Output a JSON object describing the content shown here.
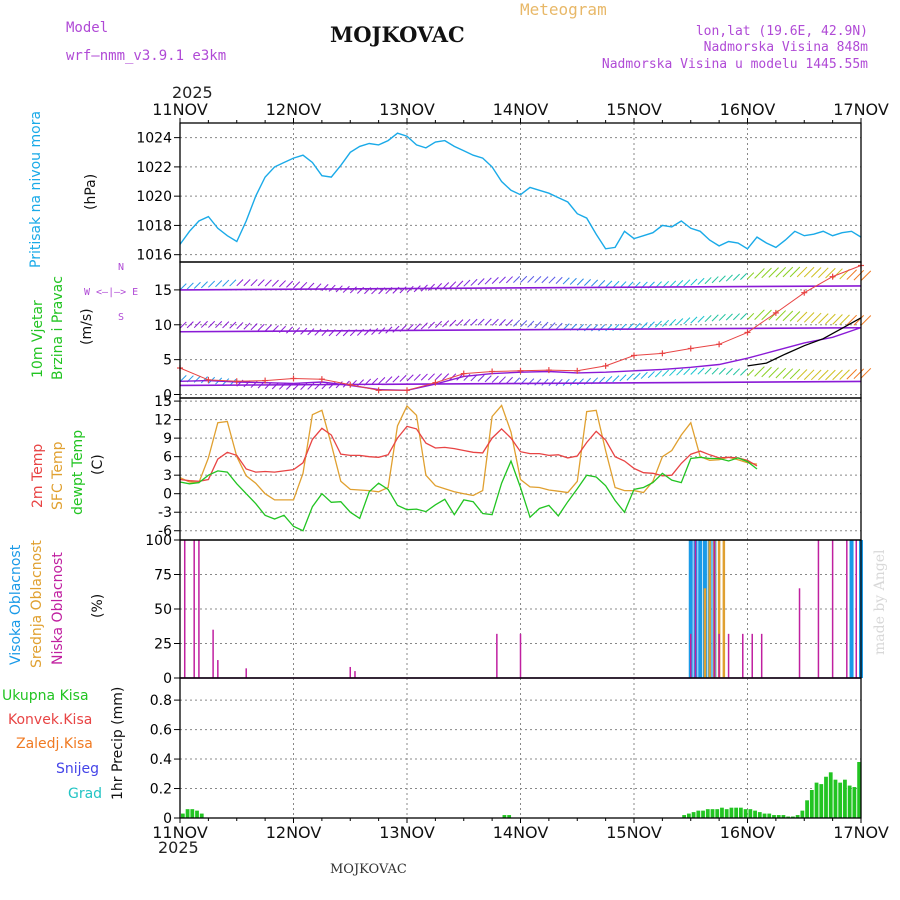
{
  "header": {
    "model_label": "Model",
    "model_name": "wrf—nmm_v3.9.1  e3km",
    "title": "MOJKOVAC",
    "meteogram_label": "Meteogram",
    "lonlat": "lon,lat (19.6E, 42.9N)",
    "altitude": "Nadmorska Visina 848m",
    "model_altitude": "Nadmorska Visina u modelu 1445.55m",
    "year_top": "2025",
    "year_bottom": "2025",
    "footer_station": "MOJKOVAC",
    "watermark": "made by Angel"
  },
  "colors": {
    "pressure": "#1aaae8",
    "wind_mean": "#8a1ad6",
    "gust": "#e84444",
    "temp2m": "#e84444",
    "sfc": "#e0a030",
    "dewpt": "#22c422",
    "high_cloud": "#1a9ae8",
    "mid_cloud": "#e0a030",
    "low_cloud": "#c020a0",
    "precip_total": "#22c422",
    "precip_conv": "#e84444",
    "precip_frozen": "#f07a22",
    "precip_snow": "#4444e8",
    "precip_hail": "#22c4c4"
  },
  "panel_labels": {
    "pressure_name": "Pritisak na nivou mora",
    "pressure_unit": "(hPa)",
    "wind_name1": "10m Vjetar",
    "wind_name2": "Brzina i Pravac",
    "wind_unit": "(m/s)",
    "wind_dir_legend": "W  <—|—>  E",
    "wind_dir_n": "N",
    "wind_dir_s": "S",
    "temp_2m": "2m Temp",
    "temp_sfc": "SFC Temp",
    "temp_dew": "dewpt Temp",
    "temp_unit": "(C)",
    "cloud_high": "Visoka Oblacnost",
    "cloud_mid": "Srednja Oblacnost",
    "cloud_low": "Niska Oblacnost",
    "cloud_unit": "(%)",
    "precip_total": "Ukupna  Kisa",
    "precip_conv": "Konvek.Kisa",
    "precip_frozen": "Zaledj.Kisa",
    "precip_snow": "Snijeg",
    "precip_hail": "Grad",
    "precip_unit": "1hr Precip (mm)"
  },
  "chart_data": {
    "type": "meteogram",
    "time_axis": {
      "hours": 144,
      "day_labels": [
        "11NOV",
        "12NOV",
        "13NOV",
        "14NOV",
        "15NOV",
        "16NOV",
        "17NOV"
      ]
    },
    "pressure": {
      "title": "Pritisak na nivou mora",
      "ylabel": "(hPa)",
      "ylim": [
        1015.5,
        1025
      ],
      "yticks": [
        1016,
        1018,
        1020,
        1022,
        1024
      ],
      "x": [
        0,
        2,
        4,
        6,
        8,
        10,
        12,
        14,
        16,
        18,
        20,
        22,
        24,
        26,
        28,
        30,
        32,
        34,
        36,
        38,
        40,
        42,
        44,
        46,
        48,
        50,
        52,
        54,
        56,
        58,
        60,
        62,
        64,
        66,
        68,
        70,
        72,
        74,
        76,
        78,
        80,
        82,
        84,
        86,
        88,
        90,
        92,
        94,
        96,
        98,
        100,
        102,
        104,
        106,
        108,
        110,
        112,
        114,
        116,
        118,
        120,
        122,
        124,
        126,
        128,
        130,
        132,
        134,
        136,
        138,
        140,
        142,
        144
      ],
      "values": [
        1016.7,
        1017.6,
        1018.3,
        1018.6,
        1017.8,
        1017.3,
        1016.9,
        1018.3,
        1020.0,
        1021.3,
        1022.0,
        1022.3,
        1022.6,
        1022.8,
        1022.3,
        1021.4,
        1021.3,
        1022.1,
        1023.0,
        1023.4,
        1023.6,
        1023.5,
        1023.8,
        1024.3,
        1024.1,
        1023.5,
        1023.3,
        1023.7,
        1023.8,
        1023.4,
        1023.1,
        1022.8,
        1022.6,
        1022.0,
        1021.0,
        1020.4,
        1020.1,
        1020.6,
        1020.4,
        1020.2,
        1019.9,
        1019.6,
        1018.8,
        1018.5,
        1017.4,
        1016.4,
        1016.5,
        1017.6,
        1017.1,
        1017.3,
        1017.5,
        1018.0,
        1017.9,
        1018.3,
        1017.8,
        1017.6,
        1017.0,
        1016.6,
        1016.9,
        1016.8,
        1016.4,
        1017.2,
        1016.8,
        1016.5,
        1017.0,
        1017.6,
        1017.3,
        1017.4,
        1017.6,
        1017.3,
        1017.5,
        1017.6,
        1017.2
      ]
    },
    "wind": {
      "title": "10m Vjetar Brzina i Pravac",
      "ylabel": "(m/s)",
      "ylim": [
        -0.5,
        19
      ],
      "yticks": [
        0,
        5,
        10,
        15
      ],
      "x": [
        0,
        6,
        12,
        18,
        24,
        30,
        36,
        42,
        48,
        54,
        60,
        66,
        72,
        78,
        84,
        90,
        96,
        102,
        108,
        114,
        120,
        126,
        132,
        138,
        144
      ],
      "mean_speed": [
        1.9,
        2.0,
        1.8,
        1.7,
        1.6,
        1.8,
        1.3,
        0.7,
        0.6,
        1.5,
        2.6,
        3.0,
        3.2,
        3.3,
        3.1,
        3.2,
        3.4,
        3.6,
        3.9,
        4.3,
        5.2,
        6.3,
        7.4,
        8.2,
        9.6
      ],
      "gust_speed": [
        3.8,
        2.1,
        1.9,
        2.0,
        2.3,
        2.2,
        1.4,
        0.6,
        0.6,
        1.7,
        3.0,
        3.3,
        3.4,
        3.5,
        3.4,
        4.1,
        5.6,
        5.9,
        6.6,
        7.2,
        8.9,
        11.7,
        14.6,
        16.9,
        18.5
      ],
      "black_line_x": [
        120,
        124,
        128,
        132,
        136,
        140,
        144
      ],
      "black_line": [
        4.1,
        4.5,
        5.8,
        7.0,
        8.0,
        9.5,
        11.0
      ]
    },
    "temperature": {
      "ylabel": "(C)",
      "ylim": [
        -7.5,
        15.5
      ],
      "yticks": [
        -6,
        -3,
        0,
        3,
        6,
        9,
        12,
        15
      ],
      "x": [
        0,
        2,
        4,
        6,
        8,
        10,
        12,
        14,
        16,
        18,
        20,
        22,
        24,
        26,
        28,
        30,
        32,
        34,
        36,
        38,
        40,
        42,
        44,
        46,
        48,
        50,
        52,
        54,
        56,
        58,
        60,
        62,
        64,
        66,
        68,
        70,
        72,
        74,
        76,
        78,
        80,
        82,
        84,
        86,
        88,
        90,
        92,
        94,
        96,
        98,
        100,
        102,
        104,
        106,
        108,
        110,
        112,
        114,
        116,
        118,
        120,
        122,
        124,
        126,
        128,
        130,
        132,
        134,
        136,
        138,
        140,
        142,
        144
      ],
      "temp_2m": [
        2.3,
        2.1,
        2.0,
        2.3,
        5.6,
        6.7,
        6.2,
        4.0,
        3.5,
        3.6,
        3.5,
        3.7,
        3.9,
        5.0,
        8.8,
        10.6,
        9.5,
        6.4,
        6.2,
        6.2,
        6.0,
        5.9,
        6.3,
        9.0,
        10.9,
        10.5,
        8.2,
        7.4,
        7.5,
        7.3,
        7.0,
        6.7,
        6.6,
        9.0,
        10.5,
        9.0,
        6.8,
        6.5,
        6.5,
        6.2,
        6.3,
        5.8,
        6.1,
        8.3,
        10.1,
        8.7,
        6.0,
        5.3,
        4.1,
        3.4,
        3.3,
        2.9,
        3.0,
        4.9,
        6.4,
        6.9,
        6.3,
        5.8,
        5.9,
        5.8,
        5.4,
        4.5
      ],
      "sfc": [
        2.6,
        1.9,
        1.8,
        5.8,
        11.5,
        11.7,
        6.0,
        2.9,
        1.7,
        0.0,
        -1.0,
        -1.0,
        -1.0,
        3.3,
        12.8,
        13.5,
        8.0,
        2.0,
        0.7,
        0.6,
        0.5,
        0.3,
        1.0,
        11.0,
        14.2,
        12.7,
        3.0,
        1.3,
        0.8,
        0.3,
        0.0,
        -0.3,
        0.5,
        12.5,
        14.3,
        10.0,
        2.3,
        1.1,
        1.0,
        0.6,
        0.4,
        0.2,
        2.0,
        13.3,
        13.5,
        7.0,
        1.0,
        0.5,
        0.5,
        0.2,
        2.0,
        6.0,
        7.0,
        9.5,
        11.5,
        6.0,
        5.4,
        5.5,
        5.9,
        5.5,
        5.0,
        4.8
      ],
      "dewpt": [
        1.9,
        1.6,
        1.8,
        3.0,
        3.7,
        3.5,
        1.6,
        0.0,
        -1.6,
        -3.5,
        -4.1,
        -3.5,
        -5.3,
        -6.0,
        -2.1,
        0.0,
        -1.4,
        -1.3,
        -3.0,
        -4.0,
        0.3,
        1.7,
        0.7,
        -1.9,
        -2.6,
        -2.5,
        -2.9,
        -1.8,
        -0.9,
        -3.4,
        -1.0,
        -1.3,
        -3.2,
        -3.4,
        1.7,
        5.3,
        1.0,
        -3.8,
        -2.4,
        -1.9,
        -3.6,
        -1.3,
        0.8,
        3.0,
        2.7,
        1.3,
        -1.1,
        -3.0,
        0.7,
        1.0,
        1.8,
        3.3,
        2.2,
        1.8,
        5.7,
        5.9,
        5.7,
        5.7,
        5.3,
        5.8,
        5.2,
        4.0
      ]
    },
    "cloud_cover": {
      "ylabel": "(%)",
      "ylim": [
        0,
        100
      ],
      "yticks": [
        0,
        25,
        50,
        75,
        100
      ],
      "low": [
        {
          "h": 1,
          "v": 100
        },
        {
          "h": 3,
          "v": 100
        },
        {
          "h": 4,
          "v": 100
        },
        {
          "h": 7,
          "v": 35
        },
        {
          "h": 8,
          "v": 13
        },
        {
          "h": 14,
          "v": 7
        },
        {
          "h": 36,
          "v": 8
        },
        {
          "h": 37,
          "v": 5
        },
        {
          "h": 67,
          "v": 32
        },
        {
          "h": 72,
          "v": 32
        },
        {
          "h": 108,
          "v": 32
        },
        {
          "h": 109,
          "v": 100
        },
        {
          "h": 113,
          "v": 100
        },
        {
          "h": 114,
          "v": 32
        },
        {
          "h": 116,
          "v": 32
        },
        {
          "h": 119,
          "v": 32
        },
        {
          "h": 121,
          "v": 32
        },
        {
          "h": 123,
          "v": 32
        },
        {
          "h": 131,
          "v": 65
        },
        {
          "h": 135,
          "v": 100
        },
        {
          "h": 138,
          "v": 100
        },
        {
          "h": 141,
          "v": 100
        },
        {
          "h": 143,
          "v": 100
        }
      ],
      "mid": [
        {
          "h": 111,
          "v": 65
        },
        {
          "h": 112,
          "v": 100
        },
        {
          "h": 113,
          "v": 100
        },
        {
          "h": 114,
          "v": 100
        },
        {
          "h": 115,
          "v": 100
        }
      ],
      "high": [
        {
          "h": 108,
          "v": 100
        },
        {
          "h": 109,
          "v": 100
        },
        {
          "h": 110,
          "v": 100
        },
        {
          "h": 111,
          "v": 100
        },
        {
          "h": 112,
          "v": 100
        },
        {
          "h": 113,
          "v": 100
        },
        {
          "h": 142,
          "v": 100
        },
        {
          "h": 144,
          "v": 100
        }
      ]
    },
    "precipitation": {
      "ylabel": "1hr Precip (mm)",
      "ylim": [
        0,
        0.95
      ],
      "yticks": [
        0,
        0.2,
        0.4,
        0.6,
        0.8
      ],
      "x": [
        1,
        2,
        3,
        4,
        5,
        69,
        70,
        107,
        108,
        109,
        110,
        111,
        112,
        113,
        114,
        115,
        116,
        117,
        118,
        119,
        120,
        121,
        122,
        123,
        124,
        125,
        126,
        127,
        128,
        129,
        130,
        131,
        132,
        133,
        134,
        135,
        136,
        137,
        138,
        139,
        140,
        141,
        142,
        143,
        144
      ],
      "values": [
        0.03,
        0.06,
        0.06,
        0.05,
        0.03,
        0.02,
        0.02,
        0.02,
        0.03,
        0.04,
        0.05,
        0.05,
        0.06,
        0.06,
        0.06,
        0.07,
        0.06,
        0.07,
        0.07,
        0.07,
        0.06,
        0.06,
        0.05,
        0.04,
        0.03,
        0.03,
        0.02,
        0.02,
        0.02,
        0.01,
        0.01,
        0.02,
        0.05,
        0.12,
        0.19,
        0.24,
        0.23,
        0.28,
        0.31,
        0.26,
        0.24,
        0.26,
        0.22,
        0.21,
        0.38
      ]
    }
  }
}
